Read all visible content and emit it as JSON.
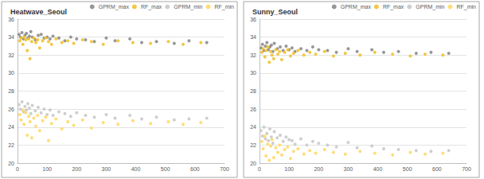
{
  "chart_data": [
    {
      "type": "scatter",
      "title": "Heatwave_Seoul",
      "xlim": [
        0,
        700
      ],
      "xticks": [
        0,
        100,
        200,
        300,
        400,
        500,
        600,
        700
      ],
      "ylim": [
        20,
        36
      ],
      "yticks": [
        20,
        22,
        24,
        26,
        28,
        30,
        32,
        34,
        36
      ],
      "grid": true,
      "legend": "top-right",
      "series": [
        {
          "name": "GPRM_max",
          "color": "#8c8c8c",
          "marker": "circle",
          "x": [
            5,
            10,
            15,
            20,
            25,
            30,
            35,
            40,
            45,
            50,
            60,
            70,
            80,
            90,
            100,
            110,
            120,
            140,
            160,
            180,
            200,
            230,
            260,
            300,
            330,
            380,
            420,
            470,
            530,
            580,
            640
          ],
          "values": [
            34.3,
            34.0,
            34.5,
            33.8,
            34.2,
            34.4,
            33.9,
            34.1,
            34.6,
            34.0,
            33.7,
            34.2,
            34.3,
            33.9,
            34.0,
            33.8,
            34.1,
            33.9,
            33.6,
            34.0,
            33.8,
            33.7,
            33.5,
            33.9,
            33.6,
            33.8,
            33.4,
            33.5,
            33.3,
            33.6,
            33.4
          ]
        },
        {
          "name": "RF_max",
          "color": "#f2c12e",
          "marker": "circle",
          "x": [
            8,
            12,
            18,
            22,
            28,
            33,
            38,
            42,
            48,
            55,
            62,
            68,
            75,
            85,
            95,
            105,
            115,
            130,
            150,
            170,
            190,
            220,
            250,
            290,
            340,
            390,
            450,
            510,
            560,
            620
          ],
          "values": [
            33.6,
            33.9,
            33.2,
            34.0,
            33.7,
            32.5,
            33.8,
            31.6,
            33.5,
            33.9,
            33.4,
            33.7,
            32.8,
            33.6,
            33.9,
            33.5,
            33.2,
            33.8,
            33.4,
            33.6,
            33.3,
            33.7,
            33.5,
            33.2,
            33.6,
            33.4,
            33.3,
            33.5,
            33.2,
            33.4
          ]
        },
        {
          "name": "GPRM_min",
          "color": "#c9c9c9",
          "marker": "circle",
          "x": [
            5,
            10,
            15,
            20,
            25,
            30,
            35,
            40,
            45,
            50,
            60,
            70,
            80,
            90,
            100,
            110,
            120,
            140,
            160,
            180,
            200,
            230,
            260,
            300,
            330,
            380,
            420,
            470,
            530,
            580,
            640
          ],
          "values": [
            26.5,
            26.0,
            26.8,
            25.7,
            26.3,
            25.9,
            26.6,
            26.1,
            25.5,
            26.4,
            25.8,
            26.2,
            25.6,
            26.0,
            25.4,
            25.9,
            25.3,
            25.7,
            25.5,
            25.2,
            25.6,
            25.3,
            25.1,
            25.4,
            25.0,
            25.3,
            24.9,
            25.1,
            24.8,
            24.9,
            25.0
          ]
        },
        {
          "name": "RF_min",
          "color": "#ffd966",
          "marker": "circle",
          "x": [
            8,
            12,
            18,
            22,
            28,
            33,
            38,
            42,
            48,
            55,
            62,
            68,
            75,
            85,
            95,
            105,
            115,
            130,
            150,
            170,
            190,
            220,
            250,
            290,
            340,
            390,
            450,
            510,
            560,
            620
          ],
          "values": [
            25.4,
            24.8,
            25.9,
            24.3,
            25.6,
            23.1,
            25.2,
            24.6,
            22.8,
            25.0,
            24.1,
            25.3,
            23.6,
            24.7,
            25.1,
            22.5,
            24.4,
            24.9,
            23.8,
            24.6,
            24.2,
            24.8,
            23.9,
            24.5,
            24.3,
            24.7,
            24.4,
            24.6,
            24.3,
            24.5
          ]
        }
      ]
    },
    {
      "type": "scatter",
      "title": "Sunny_Seoul",
      "xlim": [
        0,
        700
      ],
      "xticks": [
        0,
        100,
        200,
        300,
        400,
        500,
        600,
        700
      ],
      "ylim": [
        20,
        36
      ],
      "yticks": [
        20,
        22,
        24,
        26,
        28,
        30,
        32,
        34,
        36
      ],
      "grid": true,
      "legend": "top-right",
      "series": [
        {
          "name": "GPRM_max",
          "color": "#8c8c8c",
          "marker": "circle",
          "x": [
            5,
            10,
            15,
            20,
            25,
            30,
            35,
            40,
            45,
            50,
            60,
            70,
            80,
            90,
            100,
            110,
            120,
            140,
            160,
            180,
            200,
            230,
            260,
            300,
            330,
            380,
            420,
            470,
            530,
            580,
            640
          ],
          "values": [
            32.8,
            33.2,
            32.5,
            33.0,
            33.4,
            32.6,
            32.9,
            33.1,
            32.4,
            33.3,
            32.7,
            32.9,
            32.5,
            33.0,
            32.6,
            32.8,
            32.4,
            32.7,
            32.5,
            32.9,
            32.6,
            32.5,
            32.3,
            32.7,
            32.4,
            32.6,
            32.3,
            32.4,
            32.2,
            32.3,
            32.2
          ]
        },
        {
          "name": "RF_max",
          "color": "#f2c12e",
          "marker": "circle",
          "x": [
            8,
            12,
            18,
            22,
            28,
            33,
            38,
            42,
            48,
            55,
            62,
            68,
            75,
            85,
            95,
            105,
            115,
            130,
            150,
            170,
            190,
            220,
            250,
            290,
            340,
            390,
            450,
            510,
            560,
            620
          ],
          "values": [
            32.3,
            32.7,
            31.8,
            32.5,
            32.9,
            31.2,
            32.4,
            32.0,
            31.6,
            32.6,
            32.1,
            32.4,
            31.5,
            32.3,
            32.6,
            31.9,
            32.2,
            32.5,
            32.0,
            32.3,
            32.1,
            32.4,
            31.9,
            32.2,
            32.0,
            32.3,
            32.1,
            31.9,
            32.1,
            32.0
          ]
        },
        {
          "name": "GPRM_min",
          "color": "#c9c9c9",
          "marker": "circle",
          "x": [
            5,
            10,
            15,
            20,
            25,
            30,
            35,
            40,
            45,
            50,
            60,
            70,
            80,
            90,
            100,
            110,
            120,
            140,
            160,
            180,
            200,
            230,
            260,
            300,
            330,
            380,
            420,
            470,
            530,
            580,
            640
          ],
          "values": [
            23.6,
            23.0,
            24.0,
            22.7,
            23.3,
            22.5,
            23.8,
            22.9,
            22.2,
            23.5,
            22.8,
            23.1,
            22.4,
            22.9,
            22.6,
            22.5,
            22.1,
            22.7,
            22.0,
            22.4,
            22.2,
            22.0,
            21.8,
            22.3,
            21.7,
            21.9,
            21.6,
            21.5,
            21.4,
            21.3,
            21.4
          ]
        },
        {
          "name": "RF_min",
          "color": "#ffd966",
          "marker": "circle",
          "x": [
            8,
            12,
            18,
            22,
            28,
            33,
            38,
            42,
            48,
            55,
            62,
            68,
            75,
            85,
            95,
            105,
            115,
            130,
            150,
            170,
            190,
            220,
            250,
            290,
            340,
            390,
            450,
            510,
            560,
            620
          ],
          "values": [
            22.4,
            21.6,
            23.0,
            20.8,
            22.1,
            20.3,
            21.9,
            22.6,
            20.6,
            21.7,
            21.2,
            22.0,
            20.9,
            21.5,
            21.8,
            20.5,
            21.3,
            21.6,
            21.0,
            21.4,
            21.1,
            21.5,
            21.2,
            21.0,
            21.3,
            21.1,
            20.9,
            21.2,
            21.0,
            21.1
          ]
        }
      ]
    }
  ]
}
